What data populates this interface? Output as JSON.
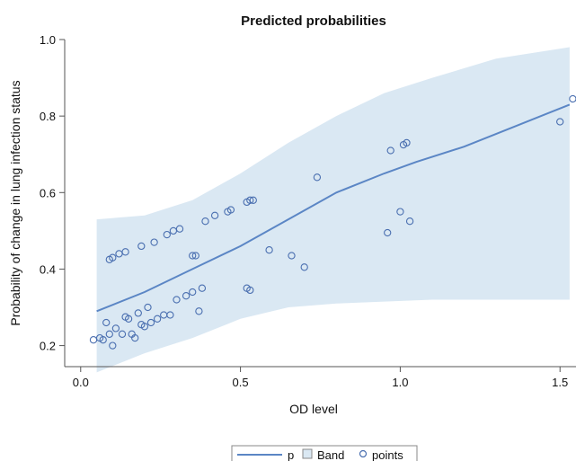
{
  "chart_data": {
    "type": "scatter",
    "title": "Predicted probabilities",
    "xlabel": "OD level",
    "ylabel": "Probability of change in lung infection status",
    "xlim": [
      -0.05,
      1.55
    ],
    "ylim": [
      0.145,
      1.0
    ],
    "x_ticks": [
      "0.0",
      "0.5",
      "1.0",
      "1.5"
    ],
    "x_tick_values": [
      0.0,
      0.5,
      1.0,
      1.5
    ],
    "y_ticks": [
      "0.2",
      "0.4",
      "0.6",
      "0.8",
      "1.0"
    ],
    "y_tick_values": [
      0.2,
      0.4,
      0.6,
      0.8,
      1.0
    ],
    "grid": false,
    "legend_position": "bottom-center",
    "colors": {
      "line": "#5b86c5",
      "band": "#dae8f3",
      "points": "#4a6fb0"
    },
    "series": [
      {
        "name": "p",
        "kind": "line",
        "x": [
          0.05,
          0.2,
          0.35,
          0.5,
          0.65,
          0.8,
          0.95,
          1.05,
          1.2,
          1.35,
          1.53
        ],
        "y": [
          0.29,
          0.34,
          0.4,
          0.46,
          0.53,
          0.6,
          0.65,
          0.68,
          0.72,
          0.77,
          0.83
        ]
      },
      {
        "name": "Band",
        "kind": "band",
        "x": [
          0.05,
          0.2,
          0.35,
          0.5,
          0.65,
          0.8,
          0.95,
          1.1,
          1.3,
          1.53
        ],
        "upper": [
          0.53,
          0.54,
          0.58,
          0.65,
          0.73,
          0.8,
          0.86,
          0.9,
          0.95,
          0.98
        ],
        "lower": [
          0.13,
          0.18,
          0.22,
          0.27,
          0.3,
          0.31,
          0.315,
          0.32,
          0.32,
          0.32
        ]
      },
      {
        "name": "points",
        "kind": "scatter",
        "x": [
          0.04,
          0.06,
          0.07,
          0.08,
          0.09,
          0.1,
          0.11,
          0.13,
          0.14,
          0.15,
          0.16,
          0.17,
          0.18,
          0.19,
          0.2,
          0.21,
          0.22,
          0.24,
          0.26,
          0.28,
          0.3,
          0.33,
          0.35,
          0.37,
          0.38,
          0.09,
          0.1,
          0.12,
          0.14,
          0.19,
          0.23,
          0.27,
          0.29,
          0.31,
          0.35,
          0.36,
          0.39,
          0.42,
          0.46,
          0.47,
          0.52,
          0.53,
          0.54,
          0.52,
          0.53,
          0.59,
          0.66,
          0.7,
          0.74,
          0.96,
          0.97,
          1.0,
          1.01,
          1.02,
          1.03,
          1.5,
          1.54
        ],
        "y": [
          0.215,
          0.22,
          0.215,
          0.26,
          0.23,
          0.2,
          0.245,
          0.23,
          0.275,
          0.27,
          0.23,
          0.22,
          0.285,
          0.255,
          0.25,
          0.3,
          0.26,
          0.27,
          0.28,
          0.28,
          0.32,
          0.33,
          0.34,
          0.29,
          0.35,
          0.425,
          0.43,
          0.44,
          0.445,
          0.46,
          0.47,
          0.49,
          0.5,
          0.505,
          0.435,
          0.435,
          0.525,
          0.54,
          0.55,
          0.555,
          0.575,
          0.58,
          0.58,
          0.35,
          0.345,
          0.45,
          0.435,
          0.405,
          0.64,
          0.495,
          0.71,
          0.55,
          0.725,
          0.73,
          0.525,
          0.785,
          0.845
        ]
      }
    ]
  }
}
